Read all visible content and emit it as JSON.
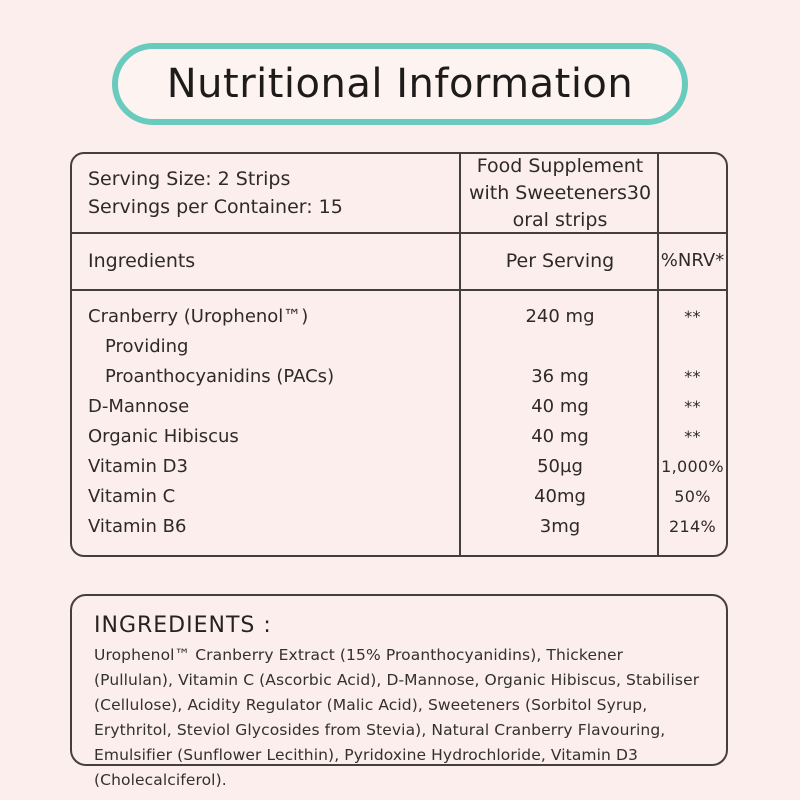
{
  "title": "Nutritional Information",
  "colors": {
    "background": "#fbeeec",
    "panel": "#fdf3f1",
    "accent_teal": "#68cbbd",
    "border_dark": "#443e3c",
    "text_dark": "#2e2a29"
  },
  "table": {
    "serving_size": "Serving Size: 2 Strips",
    "servings_per_container": "Servings per Container: 15",
    "product_info": "Food Supplement\nwith Sweeteners30\noral strips",
    "columns": {
      "ingredients": "Ingredients",
      "per_serving": "Per Serving",
      "nrv": "%NRV*"
    },
    "rows": [
      {
        "name": "Cranberry (Urophenol™)",
        "per_serving": "240 mg",
        "nrv": "**"
      },
      {
        "name": "Providing",
        "per_serving": "",
        "nrv": ""
      },
      {
        "name": "Proanthocyanidins (PACs)",
        "per_serving": "36 mg",
        "nrv": "**"
      },
      {
        "name": "D-Mannose",
        "per_serving": "40 mg",
        "nrv": "**"
      },
      {
        "name": "Organic Hibiscus",
        "per_serving": "40 mg",
        "nrv": "**"
      },
      {
        "name": "Vitamin D3",
        "per_serving": "50µg",
        "nrv": "1,000%"
      },
      {
        "name": "Vitamin C",
        "per_serving": "40mg",
        "nrv": "50%"
      },
      {
        "name": "Vitamin B6",
        "per_serving": "3mg",
        "nrv": "214%"
      }
    ]
  },
  "ingredients_box": {
    "title": "INGREDIENTS :",
    "text": "Urophenol™ Cranberry Extract (15% Proanthocyanidins), Thickener (Pullulan), Vitamin C (Ascorbic Acid), D-Mannose, Organic Hibiscus, Stabiliser (Cellulose), Acidity Regulator (Malic Acid), Sweeteners (Sorbitol Syrup, Erythritol, Steviol Glycosides from Stevia), Natural Cranberry Flavouring, Emulsifier (Sunflower Lecithin), Pyridoxine Hydrochloride, Vitamin D3 (Cholecalciferol)."
  }
}
